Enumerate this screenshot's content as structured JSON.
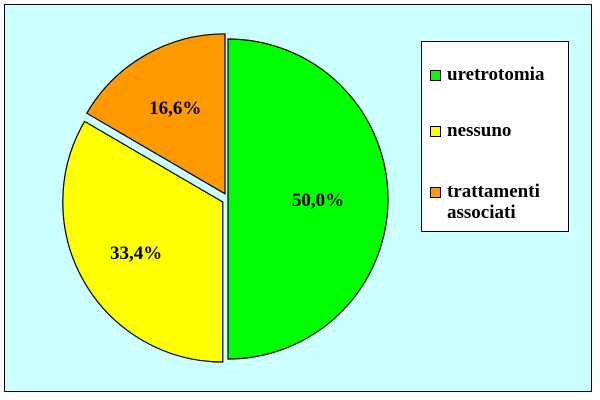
{
  "chart_data": {
    "type": "pie",
    "title": "",
    "slices": [
      {
        "label": "uretrotomia",
        "value": 50.0,
        "display": "50,0%",
        "color": "#00ff00",
        "exploded": false
      },
      {
        "label": "nessuno",
        "value": 33.4,
        "display": "33,4%",
        "color": "#ffff00",
        "exploded": true
      },
      {
        "label": "trattamenti associati",
        "value": 16.6,
        "display": "16,6%",
        "color": "#ff9900",
        "exploded": true
      }
    ],
    "legend_position": "right",
    "start_angle_deg": 0,
    "direction": "clockwise"
  },
  "colors": {
    "background": "#ccffff",
    "legend_background": "#ffffff",
    "border": "#000000"
  }
}
